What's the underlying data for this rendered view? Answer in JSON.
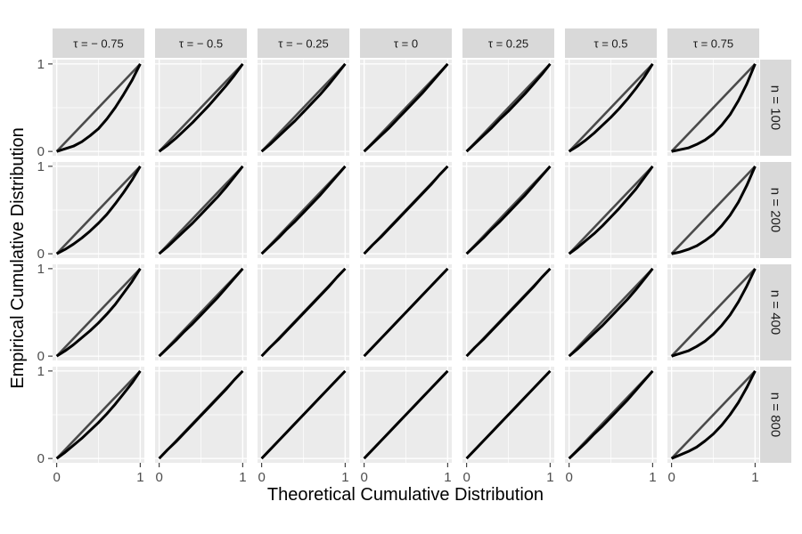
{
  "chart_data": {
    "type": "line",
    "facet_layout": "grid",
    "xlabel": "Theoretical Cumulative Distribution",
    "ylabel": "Empirical Cumulative Distribution",
    "xlim": [
      0,
      1
    ],
    "ylim": [
      0,
      1
    ],
    "x_ticks": [
      "0",
      "1"
    ],
    "y_ticks": [
      "0",
      "1"
    ],
    "column_strips": [
      "τ = − 0.75",
      "τ = − 0.5",
      "τ = − 0.25",
      "τ = 0",
      "τ = 0.25",
      "τ = 0.5",
      "τ = 0.75"
    ],
    "row_strips": [
      "n = 100",
      "n = 200",
      "n = 400",
      "n = 800"
    ],
    "x": [
      0,
      0.1,
      0.2,
      0.3,
      0.4,
      0.5,
      0.6,
      0.7,
      0.8,
      0.9,
      1
    ],
    "reference_line": {
      "x": [
        0,
        1
      ],
      "y": [
        0,
        1
      ],
      "color": "#4a4a4a"
    },
    "curve_color": "#000000",
    "panels": [
      {
        "row": "n = 100",
        "col": "τ = − 0.75",
        "y": [
          0,
          0.03,
          0.06,
          0.11,
          0.18,
          0.26,
          0.37,
          0.5,
          0.65,
          0.81,
          1
        ]
      },
      {
        "row": "n = 100",
        "col": "τ = − 0.5",
        "y": [
          0,
          0.07,
          0.15,
          0.24,
          0.33,
          0.43,
          0.53,
          0.64,
          0.75,
          0.87,
          1
        ]
      },
      {
        "row": "n = 100",
        "col": "τ = − 0.25",
        "y": [
          0,
          0.08,
          0.17,
          0.26,
          0.35,
          0.45,
          0.55,
          0.65,
          0.76,
          0.88,
          1
        ]
      },
      {
        "row": "n = 100",
        "col": "τ = 0",
        "y": [
          0,
          0.09,
          0.18,
          0.27,
          0.37,
          0.47,
          0.57,
          0.67,
          0.78,
          0.89,
          1
        ]
      },
      {
        "row": "n = 100",
        "col": "τ = 0.25",
        "y": [
          0,
          0.09,
          0.18,
          0.27,
          0.37,
          0.46,
          0.56,
          0.66,
          0.77,
          0.88,
          1
        ]
      },
      {
        "row": "n = 100",
        "col": "τ = 0.5",
        "y": [
          0,
          0.06,
          0.13,
          0.21,
          0.3,
          0.39,
          0.49,
          0.6,
          0.72,
          0.85,
          1
        ]
      },
      {
        "row": "n = 100",
        "col": "τ = 0.75",
        "y": [
          0,
          0.02,
          0.04,
          0.08,
          0.13,
          0.2,
          0.3,
          0.42,
          0.58,
          0.77,
          1
        ]
      },
      {
        "row": "n = 200",
        "col": "τ = − 0.75",
        "y": [
          0,
          0.05,
          0.11,
          0.18,
          0.26,
          0.35,
          0.45,
          0.57,
          0.7,
          0.84,
          1
        ]
      },
      {
        "row": "n = 200",
        "col": "τ = − 0.5",
        "y": [
          0,
          0.08,
          0.17,
          0.26,
          0.35,
          0.45,
          0.55,
          0.65,
          0.76,
          0.88,
          1
        ]
      },
      {
        "row": "n = 200",
        "col": "τ = − 0.25",
        "y": [
          0,
          0.09,
          0.18,
          0.28,
          0.37,
          0.47,
          0.57,
          0.67,
          0.78,
          0.89,
          1
        ]
      },
      {
        "row": "n = 200",
        "col": "τ = 0",
        "y": [
          0,
          0.1,
          0.19,
          0.29,
          0.39,
          0.49,
          0.59,
          0.69,
          0.79,
          0.9,
          1
        ]
      },
      {
        "row": "n = 200",
        "col": "τ = 0.25",
        "y": [
          0,
          0.09,
          0.18,
          0.28,
          0.37,
          0.47,
          0.57,
          0.67,
          0.78,
          0.89,
          1
        ]
      },
      {
        "row": "n = 200",
        "col": "τ = 0.5",
        "y": [
          0,
          0.07,
          0.15,
          0.23,
          0.32,
          0.42,
          0.52,
          0.63,
          0.74,
          0.87,
          1
        ]
      },
      {
        "row": "n = 200",
        "col": "τ = 0.75",
        "y": [
          0,
          0.02,
          0.05,
          0.09,
          0.15,
          0.22,
          0.32,
          0.44,
          0.59,
          0.78,
          1
        ]
      },
      {
        "row": "n = 400",
        "col": "τ = − 0.75",
        "y": [
          0,
          0.06,
          0.13,
          0.21,
          0.29,
          0.38,
          0.48,
          0.59,
          0.72,
          0.85,
          1
        ]
      },
      {
        "row": "n = 400",
        "col": "τ = − 0.5",
        "y": [
          0,
          0.09,
          0.18,
          0.28,
          0.37,
          0.47,
          0.57,
          0.67,
          0.78,
          0.89,
          1
        ]
      },
      {
        "row": "n = 400",
        "col": "τ = − 0.25",
        "y": [
          0,
          0.1,
          0.19,
          0.29,
          0.39,
          0.49,
          0.59,
          0.69,
          0.79,
          0.9,
          1
        ]
      },
      {
        "row": "n = 400",
        "col": "τ = 0",
        "y": [
          0,
          0.1,
          0.2,
          0.3,
          0.4,
          0.5,
          0.6,
          0.7,
          0.8,
          0.9,
          1
        ]
      },
      {
        "row": "n = 400",
        "col": "τ = 0.25",
        "y": [
          0,
          0.1,
          0.19,
          0.29,
          0.39,
          0.49,
          0.59,
          0.69,
          0.79,
          0.9,
          1
        ]
      },
      {
        "row": "n = 400",
        "col": "τ = 0.5",
        "y": [
          0,
          0.08,
          0.17,
          0.26,
          0.35,
          0.45,
          0.55,
          0.65,
          0.76,
          0.88,
          1
        ]
      },
      {
        "row": "n = 400",
        "col": "τ = 0.75",
        "y": [
          0,
          0.03,
          0.06,
          0.11,
          0.17,
          0.25,
          0.35,
          0.47,
          0.62,
          0.8,
          1
        ]
      },
      {
        "row": "n = 800",
        "col": "τ = − 0.75",
        "y": [
          0,
          0.07,
          0.15,
          0.23,
          0.32,
          0.41,
          0.51,
          0.62,
          0.74,
          0.86,
          1
        ]
      },
      {
        "row": "n = 800",
        "col": "τ = − 0.5",
        "y": [
          0,
          0.1,
          0.19,
          0.29,
          0.39,
          0.49,
          0.59,
          0.69,
          0.79,
          0.9,
          1
        ]
      },
      {
        "row": "n = 800",
        "col": "τ = − 0.25",
        "y": [
          0,
          0.1,
          0.2,
          0.3,
          0.4,
          0.5,
          0.6,
          0.7,
          0.8,
          0.9,
          1
        ]
      },
      {
        "row": "n = 800",
        "col": "τ = 0",
        "y": [
          0,
          0.1,
          0.2,
          0.3,
          0.4,
          0.5,
          0.6,
          0.7,
          0.8,
          0.9,
          1
        ]
      },
      {
        "row": "n = 800",
        "col": "τ = 0.25",
        "y": [
          0,
          0.1,
          0.2,
          0.3,
          0.4,
          0.5,
          0.6,
          0.7,
          0.8,
          0.9,
          1
        ]
      },
      {
        "row": "n = 800",
        "col": "τ = 0.5",
        "y": [
          0,
          0.09,
          0.18,
          0.28,
          0.37,
          0.47,
          0.57,
          0.67,
          0.78,
          0.89,
          1
        ]
      },
      {
        "row": "n = 800",
        "col": "τ = 0.75",
        "y": [
          0,
          0.04,
          0.08,
          0.13,
          0.2,
          0.28,
          0.38,
          0.5,
          0.64,
          0.81,
          1
        ]
      }
    ],
    "colors": {
      "panel_background": "#ebebeb",
      "gridline": "#ffffff",
      "strip_background": "#d9d9d9",
      "tick_mark": "#333333"
    }
  }
}
